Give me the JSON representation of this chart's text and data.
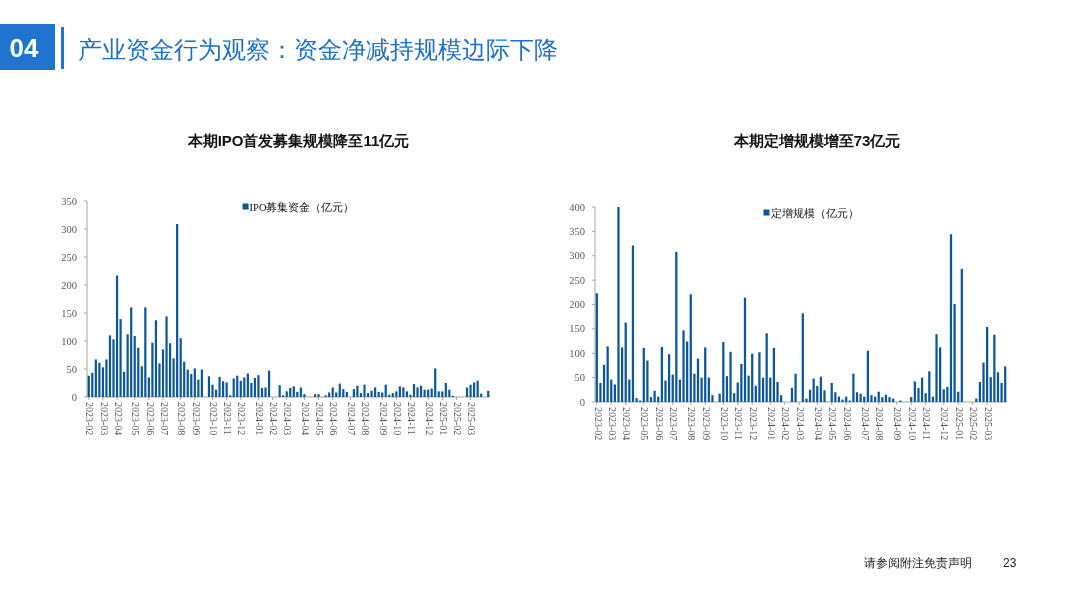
{
  "chart_data": [
    {
      "type": "other",
      "title": "产业资金行为观察：资金净减持规模边际下降",
      "annotations": [
        "04",
        "请参阅附注免责声明",
        "23"
      ]
    },
    {
      "type": "bar",
      "title": "本期IPO首发募集规模降至11亿元",
      "categories": [
        "2023-02",
        null,
        null,
        null,
        "2023-03",
        null,
        null,
        null,
        "2023-04",
        null,
        null,
        null,
        null,
        "2023-05",
        null,
        null,
        null,
        "2023-06",
        null,
        null,
        null,
        "2023-07",
        null,
        null,
        null,
        null,
        "2023-08",
        null,
        null,
        null,
        "2023-09",
        null,
        null,
        null,
        null,
        "2023-10",
        null,
        null,
        null,
        "2023-11",
        null,
        null,
        null,
        "2023-12",
        null,
        null,
        null,
        null,
        "2024-01",
        null,
        null,
        null,
        "2024-02",
        null,
        null,
        null,
        "2024-03",
        null,
        null,
        null,
        null,
        "2024-04",
        null,
        null,
        null,
        "2024-05",
        null,
        null,
        null,
        "2024-06",
        null,
        null,
        null,
        null,
        "2024-07",
        null,
        null,
        null,
        "2024-08",
        null,
        null,
        null,
        null,
        "2024-09",
        null,
        null,
        null,
        "2024-10",
        null,
        null,
        null,
        "2024-11",
        null,
        null,
        null,
        null,
        "2024-12",
        null,
        null,
        null,
        "2025-01",
        null,
        null,
        null,
        "2025-02",
        null,
        null,
        null,
        "2025-03",
        null,
        null,
        null,
        null,
        null
      ],
      "series": [
        {
          "name": "IPO募集资金（亿元）",
          "color": "#0a5699",
          "values": [
            38,
            43,
            67,
            61,
            53,
            67,
            110,
            103,
            217,
            139,
            45,
            112,
            160,
            109,
            88,
            55,
            160,
            35,
            97,
            137,
            60,
            85,
            144,
            96,
            69,
            309,
            105,
            63,
            49,
            41,
            51,
            31,
            49,
            null,
            37,
            22,
            13,
            36,
            28,
            26,
            3,
            33,
            38,
            29,
            35,
            42,
            25,
            34,
            39,
            16,
            17,
            47,
            null,
            null,
            21,
            3,
            10,
            16,
            19,
            9,
            17,
            5,
            null,
            null,
            5,
            5,
            null,
            3,
            8,
            17,
            8,
            24,
            14,
            9,
            null,
            14,
            20,
            7,
            22,
            7,
            11,
            17,
            9,
            8,
            22,
            4,
            7,
            10,
            19,
            17,
            10,
            4,
            23,
            17,
            20,
            13,
            13,
            15,
            51,
            10,
            10,
            25,
            13,
            2,
            null,
            null,
            null,
            17,
            22,
            26,
            29,
            6,
            null,
            11
          ]
        }
      ],
      "ylim": [
        0,
        350
      ],
      "yticks": [
        0,
        50,
        100,
        150,
        200,
        250,
        300,
        350
      ],
      "legend": "top"
    },
    {
      "type": "bar",
      "title": "本期定增规模增至73亿元",
      "categories": [
        "2023-02",
        null,
        null,
        null,
        "2023-03",
        null,
        null,
        null,
        "2023-04",
        null,
        null,
        null,
        null,
        "2023-05",
        null,
        null,
        null,
        "2023-06",
        null,
        null,
        null,
        "2023-07",
        null,
        null,
        null,
        null,
        "2023-08",
        null,
        null,
        null,
        "2023-09",
        null,
        null,
        null,
        null,
        "2023-10",
        null,
        null,
        null,
        "2023-11",
        null,
        null,
        null,
        "2023-12",
        null,
        null,
        null,
        null,
        "2024-01",
        null,
        null,
        null,
        "2024-02",
        null,
        null,
        null,
        "2024-03",
        null,
        null,
        null,
        null,
        "2024-04",
        null,
        null,
        null,
        "2024-05",
        null,
        null,
        null,
        "2024-06",
        null,
        null,
        null,
        null,
        "2024-07",
        null,
        null,
        null,
        "2024-08",
        null,
        null,
        null,
        null,
        "2024-09",
        null,
        null,
        null,
        "2024-10",
        null,
        null,
        null,
        "2024-11",
        null,
        null,
        null,
        null,
        "2024-12",
        null,
        null,
        null,
        "2025-01",
        null,
        null,
        null,
        "2025-02",
        null,
        null,
        null,
        "2025-03",
        null,
        null,
        null,
        null,
        null
      ],
      "series": [
        {
          "name": "定增规模（亿元）",
          "color": "#0a5699",
          "values": [
            223,
            39,
            76,
            114,
            46,
            36,
            400,
            112,
            163,
            46,
            321,
            8,
            3,
            111,
            85,
            10,
            23,
            11,
            113,
            44,
            98,
            56,
            308,
            46,
            147,
            124,
            221,
            58,
            89,
            50,
            112,
            50,
            14,
            null,
            17,
            123,
            53,
            103,
            18,
            40,
            78,
            214,
            54,
            99,
            33,
            102,
            50,
            141,
            50,
            111,
            41,
            14,
            null,
            null,
            29,
            58,
            null,
            182,
            7,
            25,
            48,
            33,
            52,
            24,
            null,
            39,
            20,
            11,
            5,
            11,
            3,
            58,
            20,
            17,
            11,
            105,
            14,
            11,
            21,
            10,
            15,
            10,
            7,
            null,
            3,
            null,
            null,
            10,
            42,
            29,
            50,
            18,
            63,
            11,
            139,
            112,
            26,
            31,
            344,
            201,
            21,
            273,
            null,
            null,
            null,
            7,
            41,
            81,
            154,
            51,
            138,
            61,
            39,
            73
          ]
        }
      ],
      "ylim": [
        0,
        400
      ],
      "yticks": [
        0,
        50,
        100,
        150,
        200,
        250,
        300,
        350,
        400
      ],
      "legend": "top"
    }
  ]
}
